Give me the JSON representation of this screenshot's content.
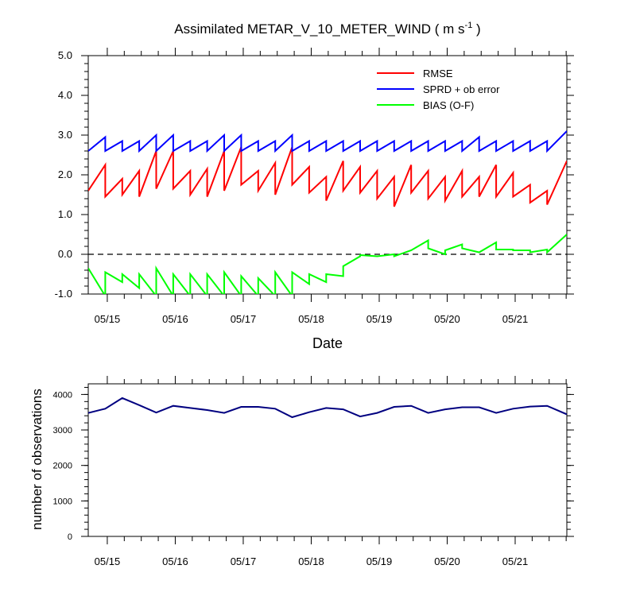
{
  "figure": {
    "title_main": "Assimilated METAR_V_10_METER_WIND ( m s",
    "title_sup": "-1",
    "title_end": " )"
  },
  "chart_data": [
    {
      "type": "line",
      "title": "Assimilated METAR_V_10_METER_WIND ( m s-1 )",
      "xlabel": "Date",
      "ylabel": "",
      "ylim": [
        -1.0,
        5.0
      ],
      "xlim": [
        14.72,
        21.76
      ],
      "x_ticks": [
        {
          "value": 15,
          "label": "05/15"
        },
        {
          "value": 16,
          "label": "05/16"
        },
        {
          "value": 17,
          "label": "05/17"
        },
        {
          "value": 18,
          "label": "05/18"
        },
        {
          "value": 19,
          "label": "05/19"
        },
        {
          "value": 20,
          "label": "05/20"
        },
        {
          "value": 21,
          "label": "05/21"
        }
      ],
      "y_ticks": [
        {
          "value": 5,
          "label": "5.0"
        },
        {
          "value": 4,
          "label": "4.0"
        },
        {
          "value": 3,
          "label": "3.0"
        },
        {
          "value": 2,
          "label": "2.0"
        },
        {
          "value": 1,
          "label": "1.0"
        },
        {
          "value": 0,
          "label": "0.0"
        },
        {
          "value": -1,
          "label": "-1.0"
        }
      ],
      "zero_line": true,
      "legend": {
        "position": "top-right",
        "entries": [
          "RMSE",
          "SPRD + ob error",
          "BIAS (O-F)"
        ]
      },
      "series": [
        {
          "name": "RMSE",
          "color": "#ff0000",
          "x": [
            14.72,
            14.97,
            14.97,
            15.22,
            15.22,
            15.47,
            15.47,
            15.72,
            15.72,
            15.97,
            15.97,
            16.22,
            16.22,
            16.47,
            16.47,
            16.72,
            16.72,
            16.97,
            16.97,
            17.22,
            17.22,
            17.47,
            17.47,
            17.72,
            17.72,
            17.97,
            17.97,
            18.22,
            18.22,
            18.47,
            18.47,
            18.72,
            18.72,
            18.97,
            18.97,
            19.22,
            19.22,
            19.47,
            19.47,
            19.72,
            19.72,
            19.97,
            19.97,
            20.22,
            20.22,
            20.47,
            20.47,
            20.72,
            20.72,
            20.97,
            20.97,
            21.22,
            21.22,
            21.47,
            21.47,
            21.76
          ],
          "y": [
            1.6,
            2.25,
            1.45,
            1.9,
            1.5,
            2.1,
            1.45,
            2.6,
            1.65,
            2.6,
            1.65,
            2.1,
            1.5,
            2.15,
            1.45,
            2.6,
            1.6,
            2.7,
            1.75,
            2.1,
            1.6,
            2.3,
            1.5,
            2.7,
            1.75,
            2.2,
            1.55,
            1.95,
            1.35,
            2.35,
            1.6,
            2.2,
            1.55,
            2.1,
            1.4,
            1.95,
            1.2,
            2.25,
            1.55,
            2.1,
            1.4,
            1.95,
            1.35,
            2.1,
            1.45,
            1.95,
            1.45,
            2.25,
            1.45,
            2.05,
            1.45,
            1.75,
            1.3,
            1.6,
            1.25,
            2.35
          ]
        },
        {
          "name": "SPRD + ob error",
          "color": "#0000ff",
          "x": [
            14.72,
            14.97,
            14.97,
            15.22,
            15.22,
            15.47,
            15.47,
            15.72,
            15.72,
            15.97,
            15.97,
            16.22,
            16.22,
            16.47,
            16.47,
            16.72,
            16.72,
            16.97,
            16.97,
            17.22,
            17.22,
            17.47,
            17.47,
            17.72,
            17.72,
            17.97,
            17.97,
            18.22,
            18.22,
            18.47,
            18.47,
            18.72,
            18.72,
            18.97,
            18.97,
            19.22,
            19.22,
            19.47,
            19.47,
            19.72,
            19.72,
            19.97,
            19.97,
            20.22,
            20.22,
            20.47,
            20.47,
            20.72,
            20.72,
            20.97,
            20.97,
            21.22,
            21.22,
            21.47,
            21.47,
            21.76
          ],
          "y": [
            2.6,
            2.95,
            2.6,
            2.85,
            2.6,
            2.85,
            2.6,
            3.0,
            2.6,
            3.0,
            2.6,
            2.85,
            2.6,
            2.85,
            2.6,
            3.0,
            2.6,
            3.0,
            2.6,
            2.85,
            2.6,
            2.85,
            2.6,
            3.0,
            2.6,
            2.85,
            2.6,
            2.85,
            2.6,
            2.85,
            2.6,
            2.85,
            2.6,
            2.85,
            2.6,
            2.85,
            2.6,
            2.85,
            2.6,
            2.85,
            2.6,
            2.85,
            2.6,
            2.85,
            2.6,
            2.95,
            2.6,
            2.85,
            2.6,
            2.85,
            2.6,
            2.85,
            2.6,
            2.85,
            2.6,
            3.1
          ]
        },
        {
          "name": "BIAS (O-F)",
          "color": "#00ff00",
          "x": [
            14.72,
            14.97,
            14.97,
            15.22,
            15.22,
            15.47,
            15.47,
            15.72,
            15.72,
            15.97,
            15.97,
            16.22,
            16.22,
            16.47,
            16.47,
            16.72,
            16.72,
            16.97,
            16.97,
            17.22,
            17.22,
            17.47,
            17.47,
            17.72,
            17.72,
            17.97,
            17.97,
            18.22,
            18.22,
            18.47,
            18.47,
            18.72,
            18.72,
            18.97,
            18.97,
            19.22,
            19.22,
            19.47,
            19.47,
            19.72,
            19.72,
            19.97,
            19.97,
            20.22,
            20.22,
            20.47,
            20.47,
            20.72,
            20.72,
            20.97,
            20.97,
            21.22,
            21.22,
            21.47,
            21.47,
            21.76
          ],
          "y": [
            -0.35,
            -1.05,
            -0.45,
            -0.7,
            -0.5,
            -0.85,
            -0.5,
            -1.05,
            -0.35,
            -1.05,
            -0.5,
            -1.05,
            -0.5,
            -1.05,
            -0.5,
            -1.05,
            -0.45,
            -1.05,
            -0.55,
            -1.05,
            -0.6,
            -1.05,
            -0.45,
            -1.05,
            -0.45,
            -0.75,
            -0.5,
            -0.7,
            -0.5,
            -0.55,
            -0.3,
            -0.05,
            -0.02,
            -0.05,
            -0.05,
            0.0,
            -0.05,
            0.1,
            0.1,
            0.35,
            0.15,
            0.0,
            0.1,
            0.25,
            0.15,
            0.05,
            0.05,
            0.3,
            0.12,
            0.12,
            0.1,
            0.1,
            0.05,
            0.12,
            0.05,
            0.5
          ]
        }
      ]
    },
    {
      "type": "line",
      "title": "",
      "xlabel": "",
      "ylabel": "number of observations",
      "ylim": [
        0,
        4300
      ],
      "xlim": [
        14.72,
        21.76
      ],
      "x_ticks": [
        {
          "value": 15,
          "label": "05/15"
        },
        {
          "value": 16,
          "label": "05/16"
        },
        {
          "value": 17,
          "label": "05/17"
        },
        {
          "value": 18,
          "label": "05/18"
        },
        {
          "value": 19,
          "label": "05/19"
        },
        {
          "value": 20,
          "label": "05/20"
        },
        {
          "value": 21,
          "label": "05/21"
        }
      ],
      "y_ticks": [
        {
          "value": 4000,
          "label": "4000"
        },
        {
          "value": 3000,
          "label": "3000"
        },
        {
          "value": 2000,
          "label": "2000"
        },
        {
          "value": 1000,
          "label": "1000"
        },
        {
          "value": 0,
          "label": "0"
        }
      ],
      "series": [
        {
          "color": "#000080",
          "x": [
            14.72,
            14.97,
            15.22,
            15.47,
            15.72,
            15.97,
            16.22,
            16.47,
            16.72,
            16.97,
            17.22,
            17.47,
            17.72,
            17.97,
            18.22,
            18.47,
            18.72,
            18.97,
            19.22,
            19.47,
            19.72,
            19.97,
            20.22,
            20.47,
            20.72,
            20.97,
            21.22,
            21.47,
            21.76
          ],
          "y": [
            3480,
            3600,
            3900,
            3700,
            3490,
            3680,
            3620,
            3560,
            3480,
            3650,
            3650,
            3600,
            3360,
            3500,
            3620,
            3580,
            3380,
            3480,
            3650,
            3680,
            3480,
            3580,
            3640,
            3640,
            3480,
            3600,
            3660,
            3680,
            3440
          ]
        }
      ]
    }
  ]
}
